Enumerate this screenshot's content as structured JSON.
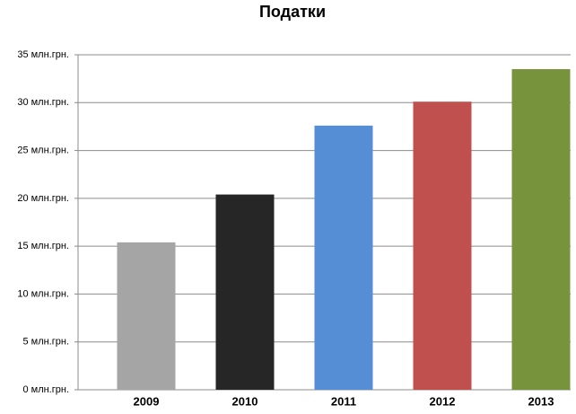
{
  "chart_data": {
    "type": "bar",
    "title": "Податки",
    "categories": [
      "2009",
      "2010",
      "2011",
      "2012",
      "2013"
    ],
    "values": [
      15.4,
      20.4,
      27.6,
      30.1,
      33.5
    ],
    "colors": [
      "#a5a5a5",
      "#262626",
      "#558ed5",
      "#c0504d",
      "#77933c"
    ],
    "ylim": [
      0,
      35
    ],
    "yticks": [
      {
        "value": 0,
        "label": "0 млн.грн."
      },
      {
        "value": 5,
        "label": "5 млн.грн."
      },
      {
        "value": 10,
        "label": "10 млн.грн."
      },
      {
        "value": 15,
        "label": "15 млн.грн."
      },
      {
        "value": 20,
        "label": "20 млн.грн."
      },
      {
        "value": 25,
        "label": "25 млн.грн."
      },
      {
        "value": 30,
        "label": "30 млн.грн."
      },
      {
        "value": 35,
        "label": "35 млн.грн."
      }
    ],
    "grid": true
  }
}
